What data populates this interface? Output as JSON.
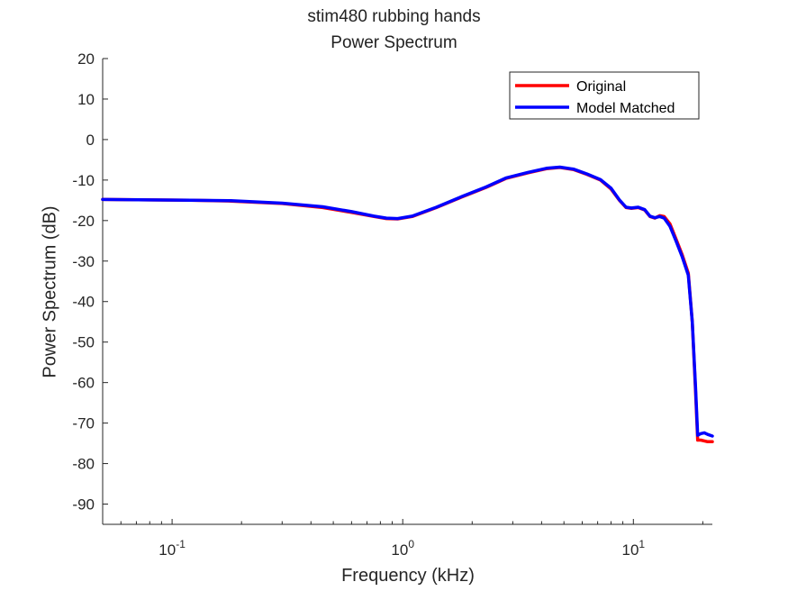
{
  "chart_data": {
    "type": "line",
    "title": "stim480 rubbing hands",
    "subtitle": "Power Spectrum",
    "xlabel": "Frequency (kHz)",
    "ylabel": "Power Spectrum (dB)",
    "xscale": "log",
    "xlim": [
      0.05,
      22
    ],
    "ylim": [
      -95,
      20
    ],
    "yticks": [
      20,
      10,
      0,
      -10,
      -20,
      -30,
      -40,
      -50,
      -60,
      -70,
      -80,
      -90
    ],
    "xticks": [
      {
        "value": 0.1,
        "base": "10",
        "exp": "-1"
      },
      {
        "value": 1,
        "base": "10",
        "exp": "0"
      },
      {
        "value": 10,
        "base": "10",
        "exp": "1"
      }
    ],
    "legend_position": "top-right",
    "grid": false,
    "series": [
      {
        "name": "Original",
        "color": "#ff0000",
        "x": [
          0.05,
          0.08,
          0.12,
          0.18,
          0.3,
          0.45,
          0.6,
          0.75,
          0.85,
          0.95,
          1.1,
          1.4,
          1.8,
          2.3,
          2.8,
          3.5,
          4.2,
          4.8,
          5.5,
          6.3,
          7.2,
          8.0,
          8.7,
          9.3,
          9.8,
          10.5,
          11.2,
          11.8,
          12.4,
          13.0,
          13.6,
          14.4,
          15.3,
          16.3,
          17.3,
          18.0,
          18.6,
          19.0,
          19.6,
          20.3,
          21.0,
          22.0
        ],
        "y": [
          -14.8,
          -14.9,
          -15.0,
          -15.2,
          -15.8,
          -16.8,
          -18.0,
          -19.0,
          -19.5,
          -19.6,
          -19.0,
          -16.8,
          -14.2,
          -11.8,
          -9.6,
          -8.2,
          -7.2,
          -6.9,
          -7.4,
          -8.6,
          -10.0,
          -12.2,
          -15.0,
          -16.8,
          -17.0,
          -16.8,
          -17.4,
          -19.0,
          -19.4,
          -18.8,
          -19.0,
          -20.8,
          -24.5,
          -28.5,
          -33.0,
          -45.0,
          -62.0,
          -74.2,
          -74.2,
          -74.4,
          -74.6,
          -74.6
        ]
      },
      {
        "name": "Model Matched",
        "color": "#0000ff",
        "x": [
          0.05,
          0.08,
          0.12,
          0.18,
          0.3,
          0.45,
          0.6,
          0.75,
          0.85,
          0.95,
          1.1,
          1.4,
          1.8,
          2.3,
          2.8,
          3.5,
          4.2,
          4.8,
          5.5,
          6.3,
          7.2,
          8.0,
          8.7,
          9.3,
          9.8,
          10.5,
          11.2,
          11.8,
          12.4,
          13.0,
          13.6,
          14.4,
          15.3,
          16.3,
          17.3,
          18.0,
          18.6,
          19.0,
          19.6,
          20.3,
          21.0,
          22.0
        ],
        "y": [
          -14.8,
          -14.9,
          -15.0,
          -15.1,
          -15.7,
          -16.6,
          -17.8,
          -18.9,
          -19.4,
          -19.5,
          -18.9,
          -16.7,
          -14.1,
          -11.7,
          -9.5,
          -8.1,
          -7.1,
          -6.8,
          -7.3,
          -8.5,
          -9.9,
          -12.0,
          -14.9,
          -16.7,
          -16.9,
          -16.7,
          -17.3,
          -18.9,
          -19.3,
          -19.0,
          -19.4,
          -21.4,
          -25.0,
          -29.0,
          -33.5,
          -45.0,
          -61.0,
          -73.0,
          -72.6,
          -72.4,
          -72.8,
          -73.2
        ]
      }
    ]
  }
}
